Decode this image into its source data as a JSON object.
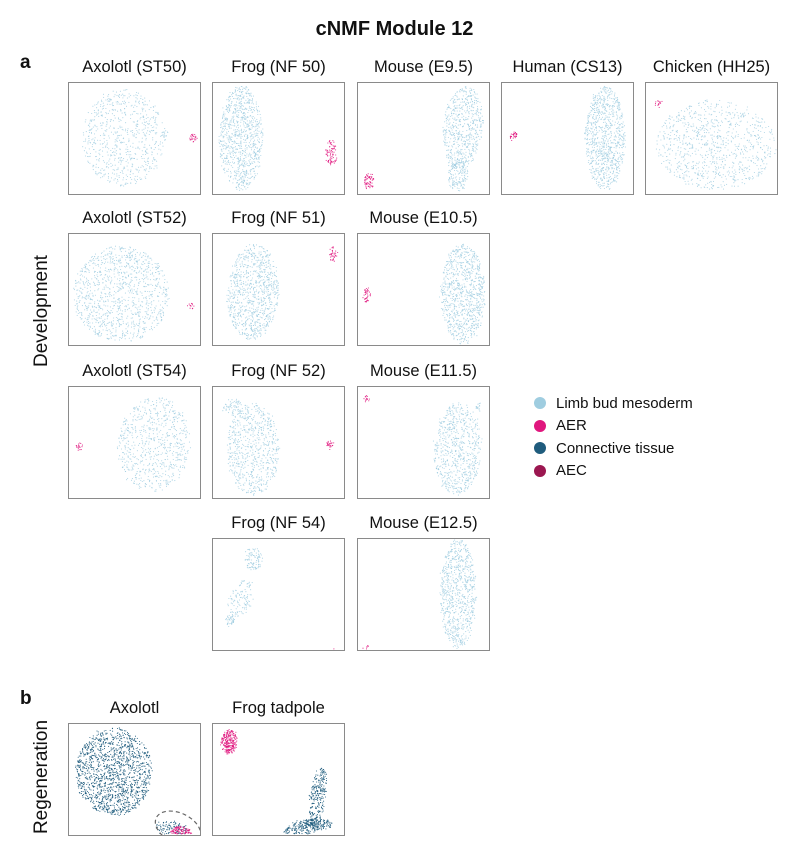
{
  "title": "cNMF Module 12",
  "panels": [
    {
      "label": "a",
      "row_label": "Development"
    },
    {
      "label": "b",
      "row_label": "Regeneration"
    }
  ],
  "legend": [
    {
      "name": "Limb bud mesoderm",
      "color": "#9fcde0"
    },
    {
      "name": "AER",
      "color": "#e0177e"
    },
    {
      "name": "Connective tissue",
      "color": "#1f5c7d"
    },
    {
      "name": "AEC",
      "color": "#9b1750"
    }
  ],
  "chart_data": {
    "type": "scatter",
    "title": "cNMF Module 12",
    "description_units": "UMAP embedding; axes unlabeled",
    "plots": [
      {
        "title": "Axolotl (ST50)"
      },
      {
        "title": "Frog (NF 50)"
      },
      {
        "title": "Mouse (E9.5)"
      },
      {
        "title": "Human (CS13)"
      },
      {
        "title": "Chicken (HH25)"
      },
      {
        "title": "Axolotl (ST52)"
      },
      {
        "title": "Frog (NF 51)"
      },
      {
        "title": "Mouse (E10.5)"
      },
      {
        "title": "Axolotl (ST54)"
      },
      {
        "title": "Frog (NF 52)"
      },
      {
        "title": "Mouse (E11.5)"
      },
      {
        "title": "Frog (NF 54)"
      },
      {
        "title": "Mouse (E12.5)"
      },
      {
        "title": "Axolotl"
      },
      {
        "title": "Frog tadpole"
      }
    ]
  }
}
